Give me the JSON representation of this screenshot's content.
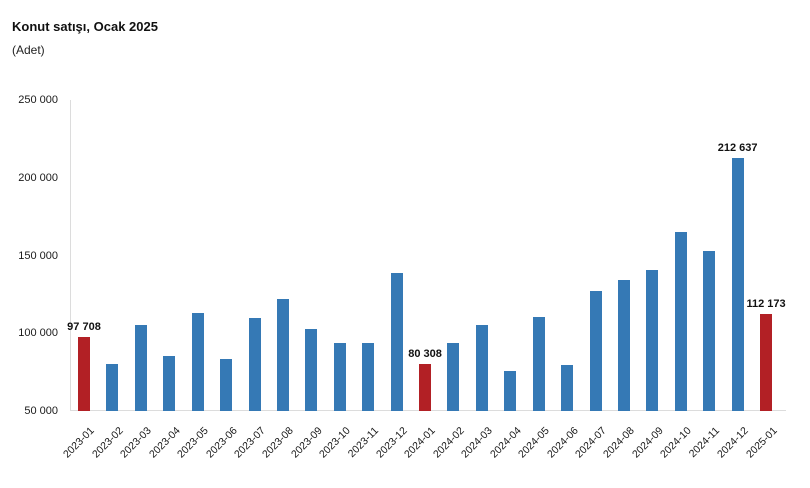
{
  "header": {
    "title": "Konut satışı, Ocak 2025",
    "subtitle": "(Adet)"
  },
  "colors": {
    "bar": "#3579B5",
    "highlight": "#B22025",
    "axis_line": "#DCDCDC",
    "text": "#1A1A1A"
  },
  "chart_data": {
    "type": "bar",
    "title": "Konut satışı, Ocak 2025",
    "ylabel": "(Adet)",
    "xlabel": "",
    "ylim": [
      50000,
      250000
    ],
    "grid": false,
    "legend": "none",
    "categories": [
      "2023-01",
      "2023-02",
      "2023-03",
      "2023-04",
      "2023-05",
      "2023-06",
      "2023-07",
      "2023-08",
      "2023-09",
      "2023-10",
      "2023-11",
      "2023-12",
      "2024-01",
      "2024-02",
      "2024-03",
      "2024-04",
      "2024-05",
      "2024-06",
      "2024-07",
      "2024-08",
      "2024-09",
      "2024-10",
      "2024-11",
      "2024-12",
      "2025-01"
    ],
    "values": [
      97708,
      80031,
      105476,
      85652,
      113276,
      83636,
      109548,
      122091,
      102656,
      93761,
      93514,
      138577,
      80308,
      93902,
      105394,
      75569,
      110588,
      79313,
      127088,
      134155,
      140919,
      165138,
      153014,
      212637,
      112173
    ],
    "highlighted_indices": [
      0,
      12,
      24
    ],
    "value_labels": [
      {
        "index": 0,
        "text": "97 708"
      },
      {
        "index": 12,
        "text": "80 308"
      },
      {
        "index": 23,
        "text": "212 637"
      },
      {
        "index": 24,
        "text": "112 173"
      }
    ],
    "y_ticks": [
      {
        "value": 250000,
        "label": "250 000"
      },
      {
        "value": 200000,
        "label": "200 000"
      },
      {
        "value": 150000,
        "label": "150 000"
      },
      {
        "value": 100000,
        "label": "100 000"
      },
      {
        "value": 50000,
        "label": "50 000"
      }
    ]
  }
}
